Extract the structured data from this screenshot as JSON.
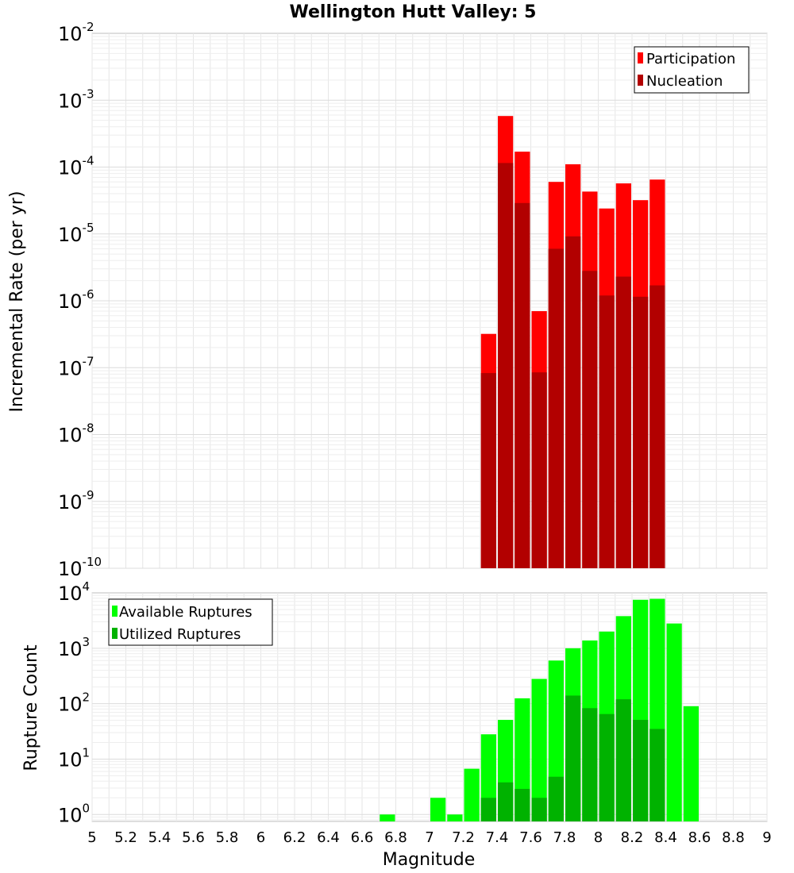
{
  "chart_data": [
    {
      "type": "bar",
      "title": "Wellington Hutt Valley: 5",
      "xlabel": "",
      "ylabel": "Incremental Rate (per yr)",
      "yscale": "log",
      "ylim": [
        1e-10,
        0.01
      ],
      "xlim": [
        5,
        9
      ],
      "grid": true,
      "legend_position": "top-right",
      "y_ticks": [
        {
          "base": "10",
          "exp": "-10",
          "value": 1e-10
        },
        {
          "base": "10",
          "exp": "-9",
          "value": 1e-09
        },
        {
          "base": "10",
          "exp": "-8",
          "value": 1e-08
        },
        {
          "base": "10",
          "exp": "-7",
          "value": 1e-07
        },
        {
          "base": "10",
          "exp": "-6",
          "value": 1e-06
        },
        {
          "base": "10",
          "exp": "-5",
          "value": 1e-05
        },
        {
          "base": "10",
          "exp": "-4",
          "value": 0.0001
        },
        {
          "base": "10",
          "exp": "-3",
          "value": 0.001
        },
        {
          "base": "10",
          "exp": "-2",
          "value": 0.01
        }
      ],
      "series": [
        {
          "name": "Participation",
          "color": "#ff0000",
          "points": [
            {
              "x": 7.35,
              "y": 3.2e-07
            },
            {
              "x": 7.45,
              "y": 0.00058
            },
            {
              "x": 7.55,
              "y": 0.00017
            },
            {
              "x": 7.65,
              "y": 7e-07
            },
            {
              "x": 7.75,
              "y": 6e-05
            },
            {
              "x": 7.85,
              "y": 0.00011
            },
            {
              "x": 7.95,
              "y": 4.3e-05
            },
            {
              "x": 8.05,
              "y": 2.4e-05
            },
            {
              "x": 8.15,
              "y": 5.7e-05
            },
            {
              "x": 8.25,
              "y": 3.2e-05
            },
            {
              "x": 8.35,
              "y": 6.5e-05
            }
          ]
        },
        {
          "name": "Nucleation",
          "color": "#b20000",
          "points": [
            {
              "x": 7.35,
              "y": 8.3e-08
            },
            {
              "x": 7.45,
              "y": 0.000115
            },
            {
              "x": 7.55,
              "y": 2.9e-05
            },
            {
              "x": 7.65,
              "y": 8.5e-08
            },
            {
              "x": 7.75,
              "y": 6e-06
            },
            {
              "x": 7.85,
              "y": 9.2e-06
            },
            {
              "x": 7.95,
              "y": 2.8e-06
            },
            {
              "x": 8.05,
              "y": 1.2e-06
            },
            {
              "x": 8.15,
              "y": 2.3e-06
            },
            {
              "x": 8.25,
              "y": 1.15e-06
            },
            {
              "x": 8.35,
              "y": 1.7e-06
            }
          ]
        }
      ]
    },
    {
      "type": "bar",
      "xlabel": "Magnitude",
      "ylabel": "Rupture Count",
      "yscale": "log",
      "ylim": [
        0.75,
        10000
      ],
      "xlim": [
        5,
        9
      ],
      "grid": true,
      "legend_position": "top-left",
      "x_ticks": [
        "5",
        "5.2",
        "5.4",
        "5.6",
        "5.8",
        "6",
        "6.2",
        "6.4",
        "6.6",
        "6.8",
        "7",
        "7.2",
        "7.4",
        "7.6",
        "7.8",
        "8",
        "8.2",
        "8.4",
        "8.6",
        "8.8",
        "9"
      ],
      "y_ticks": [
        {
          "base": "10",
          "exp": "0",
          "value": 1
        },
        {
          "base": "10",
          "exp": "1",
          "value": 10
        },
        {
          "base": "10",
          "exp": "2",
          "value": 100
        },
        {
          "base": "10",
          "exp": "3",
          "value": 1000
        },
        {
          "base": "10",
          "exp": "4",
          "value": 10000
        }
      ],
      "series": [
        {
          "name": "Available Ruptures",
          "color": "#00ff00",
          "points": [
            {
              "x": 6.75,
              "y": 1
            },
            {
              "x": 7.05,
              "y": 2
            },
            {
              "x": 7.15,
              "y": 1
            },
            {
              "x": 7.25,
              "y": 6.7
            },
            {
              "x": 7.35,
              "y": 28
            },
            {
              "x": 7.45,
              "y": 51
            },
            {
              "x": 7.55,
              "y": 125
            },
            {
              "x": 7.65,
              "y": 280
            },
            {
              "x": 7.75,
              "y": 600
            },
            {
              "x": 7.85,
              "y": 1000
            },
            {
              "x": 7.95,
              "y": 1380
            },
            {
              "x": 8.05,
              "y": 2000
            },
            {
              "x": 8.15,
              "y": 3800
            },
            {
              "x": 8.25,
              "y": 7500
            },
            {
              "x": 8.35,
              "y": 7800
            },
            {
              "x": 8.45,
              "y": 2800
            },
            {
              "x": 8.55,
              "y": 90
            }
          ]
        },
        {
          "name": "Utilized Ruptures",
          "color": "#00b200",
          "points": [
            {
              "x": 7.35,
              "y": 2
            },
            {
              "x": 7.45,
              "y": 3.8
            },
            {
              "x": 7.55,
              "y": 2.9
            },
            {
              "x": 7.65,
              "y": 2
            },
            {
              "x": 7.75,
              "y": 4.8
            },
            {
              "x": 7.85,
              "y": 140
            },
            {
              "x": 7.95,
              "y": 83
            },
            {
              "x": 8.05,
              "y": 65
            },
            {
              "x": 8.15,
              "y": 120
            },
            {
              "x": 8.25,
              "y": 51
            },
            {
              "x": 8.35,
              "y": 35
            }
          ]
        }
      ]
    }
  ]
}
